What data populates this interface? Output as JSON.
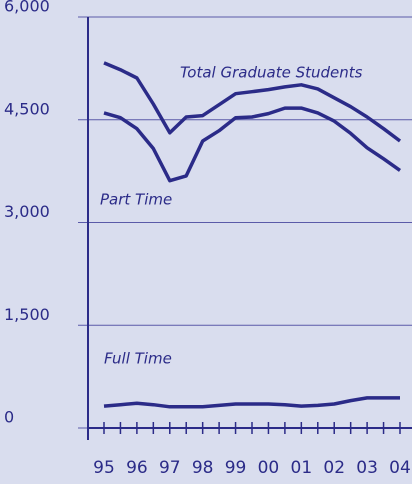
{
  "chart_data": {
    "type": "line",
    "categories": [
      "95",
      null,
      "96",
      null,
      "97",
      null,
      "98",
      null,
      "99",
      null,
      "00",
      null,
      "01",
      null,
      "02",
      null,
      "03",
      null,
      "04"
    ],
    "series": [
      {
        "name": "Total Graduate Students",
        "color": "#2b2b88",
        "values": [
          5330,
          5230,
          5110,
          4730,
          4310,
          4540,
          4560,
          4720,
          4880,
          4910,
          4940,
          4980,
          5010,
          4950,
          4820,
          4690,
          4540,
          4370,
          4190
        ]
      },
      {
        "name": "Part Time",
        "color": "#2b2b88",
        "values": [
          4600,
          4530,
          4370,
          4080,
          3610,
          3680,
          4190,
          4340,
          4530,
          4540,
          4590,
          4670,
          4670,
          4600,
          4480,
          4300,
          4090,
          3930,
          3760
        ]
      },
      {
        "name": "Full Time",
        "color": "#2b2b88",
        "values": [
          320,
          340,
          360,
          340,
          310,
          310,
          310,
          330,
          350,
          350,
          350,
          340,
          320,
          330,
          350,
          400,
          440,
          440,
          440
        ]
      }
    ],
    "ylim": [
      0,
      6000
    ],
    "yticks": [
      0,
      {
        "value": 1500,
        "label": "1,500"
      },
      {
        "value": 3000,
        "label": "3,000"
      },
      {
        "value": 4500,
        "label": "4,500"
      },
      {
        "value": 6000,
        "label": "6,000"
      }
    ],
    "grid": true
  }
}
